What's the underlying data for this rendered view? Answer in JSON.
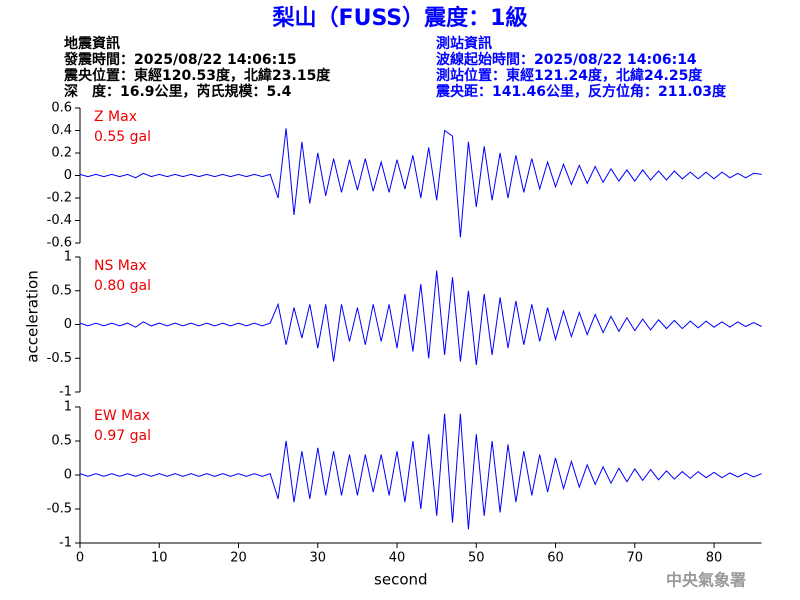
{
  "header": {
    "title": "梨山（FUSS）震度：1級",
    "left": [
      "地震資訊",
      "發震時間：2025/08/22 14:06:15",
      "震央位置：東經120.53度，北緯23.15度",
      "深　度：16.9公里，芮氏規模：5.4"
    ],
    "right": [
      "測站資訊",
      "波線起始時間：2025/08/22 14:06:14",
      "測站位置：東經121.24度，北緯24.25度",
      "震央距：141.46公里，反方位角：211.03度"
    ]
  },
  "footer": "中央氣象署",
  "chart_data": [
    {
      "type": "line",
      "annotations": [
        "Z Max",
        "0.55 gal"
      ],
      "color": "#0000ff",
      "x": [
        0,
        1,
        2,
        3,
        4,
        5,
        6,
        7,
        8,
        9,
        10,
        11,
        12,
        13,
        14,
        15,
        16,
        17,
        18,
        19,
        20,
        21,
        22,
        23,
        24,
        25,
        26,
        27,
        28,
        29,
        30,
        31,
        32,
        33,
        34,
        35,
        36,
        37,
        38,
        39,
        40,
        41,
        42,
        43,
        44,
        45,
        46,
        47,
        48,
        49,
        50,
        51,
        52,
        53,
        54,
        55,
        56,
        57,
        58,
        59,
        60,
        61,
        62,
        63,
        64,
        65,
        66,
        67,
        68,
        69,
        70,
        71,
        72,
        73,
        74,
        75,
        76,
        77,
        78,
        79,
        80,
        81,
        82,
        83,
        84,
        85,
        86
      ],
      "values": [
        0.01,
        -0.01,
        0.01,
        -0.01,
        0.01,
        -0.01,
        0.01,
        -0.02,
        0.02,
        -0.01,
        0.01,
        -0.01,
        0.01,
        -0.01,
        0.01,
        -0.01,
        0.01,
        -0.01,
        0.01,
        -0.01,
        0.01,
        -0.01,
        0.01,
        -0.01,
        0.01,
        -0.2,
        0.42,
        -0.35,
        0.3,
        -0.25,
        0.2,
        -0.18,
        0.15,
        -0.15,
        0.14,
        -0.13,
        0.15,
        -0.14,
        0.12,
        -0.15,
        0.14,
        -0.12,
        0.18,
        -0.2,
        0.25,
        -0.22,
        0.4,
        0.35,
        -0.55,
        0.3,
        -0.28,
        0.26,
        -0.22,
        0.2,
        -0.2,
        0.18,
        -0.15,
        0.15,
        -0.12,
        0.12,
        -0.1,
        0.1,
        -0.08,
        0.09,
        -0.07,
        0.08,
        -0.06,
        0.06,
        -0.05,
        0.05,
        -0.05,
        0.05,
        -0.04,
        0.04,
        -0.04,
        0.04,
        -0.03,
        0.03,
        -0.03,
        0.03,
        -0.03,
        0.03,
        -0.02,
        0.02,
        -0.02,
        0.02,
        0.01
      ],
      "xlim": [
        0,
        86
      ],
      "ylim": [
        -0.6,
        0.6
      ],
      "yticks": [
        0.6,
        0.4,
        0.2,
        0,
        -0.2,
        -0.4,
        -0.6
      ]
    },
    {
      "type": "line",
      "annotations": [
        "NS Max",
        "0.80 gal"
      ],
      "color": "#0000ff",
      "ylabel": "acceleration",
      "x": [
        0,
        1,
        2,
        3,
        4,
        5,
        6,
        7,
        8,
        9,
        10,
        11,
        12,
        13,
        14,
        15,
        16,
        17,
        18,
        19,
        20,
        21,
        22,
        23,
        24,
        25,
        26,
        27,
        28,
        29,
        30,
        31,
        32,
        33,
        34,
        35,
        36,
        37,
        38,
        39,
        40,
        41,
        42,
        43,
        44,
        45,
        46,
        47,
        48,
        49,
        50,
        51,
        52,
        53,
        54,
        55,
        56,
        57,
        58,
        59,
        60,
        61,
        62,
        63,
        64,
        65,
        66,
        67,
        68,
        69,
        70,
        71,
        72,
        73,
        74,
        75,
        76,
        77,
        78,
        79,
        80,
        81,
        82,
        83,
        84,
        85,
        86
      ],
      "values": [
        0.02,
        -0.02,
        0.02,
        -0.02,
        0.02,
        -0.02,
        0.02,
        -0.04,
        0.04,
        -0.02,
        0.02,
        -0.02,
        0.02,
        -0.02,
        0.02,
        -0.02,
        0.02,
        -0.02,
        0.02,
        -0.02,
        0.02,
        -0.02,
        0.02,
        -0.02,
        0.02,
        0.3,
        -0.3,
        0.25,
        -0.2,
        0.3,
        -0.35,
        0.3,
        -0.55,
        0.3,
        -0.25,
        0.25,
        -0.3,
        0.3,
        -0.25,
        0.3,
        -0.35,
        0.45,
        -0.4,
        0.6,
        -0.5,
        0.8,
        -0.45,
        0.7,
        -0.55,
        0.5,
        -0.6,
        0.45,
        -0.45,
        0.4,
        -0.35,
        0.35,
        -0.3,
        0.3,
        -0.25,
        0.25,
        -0.22,
        0.2,
        -0.18,
        0.18,
        -0.15,
        0.15,
        -0.12,
        0.12,
        -0.1,
        0.1,
        -0.09,
        0.08,
        -0.08,
        0.07,
        -0.06,
        0.06,
        -0.06,
        0.05,
        -0.05,
        0.05,
        -0.04,
        0.04,
        -0.04,
        0.04,
        -0.03,
        0.03,
        -0.03
      ],
      "xlim": [
        0,
        86
      ],
      "ylim": [
        -1,
        1
      ],
      "yticks": [
        1,
        0.5,
        0,
        -0.5,
        -1
      ]
    },
    {
      "type": "line",
      "annotations": [
        "EW Max",
        "0.97 gal"
      ],
      "color": "#0000ff",
      "xlabel": "second",
      "x": [
        0,
        1,
        2,
        3,
        4,
        5,
        6,
        7,
        8,
        9,
        10,
        11,
        12,
        13,
        14,
        15,
        16,
        17,
        18,
        19,
        20,
        21,
        22,
        23,
        24,
        25,
        26,
        27,
        28,
        29,
        30,
        31,
        32,
        33,
        34,
        35,
        36,
        37,
        38,
        39,
        40,
        41,
        42,
        43,
        44,
        45,
        46,
        47,
        48,
        49,
        50,
        51,
        52,
        53,
        54,
        55,
        56,
        57,
        58,
        59,
        60,
        61,
        62,
        63,
        64,
        65,
        66,
        67,
        68,
        69,
        70,
        71,
        72,
        73,
        74,
        75,
        76,
        77,
        78,
        79,
        80,
        81,
        82,
        83,
        84,
        85,
        86
      ],
      "values": [
        0.02,
        -0.02,
        0.02,
        -0.02,
        0.02,
        -0.02,
        0.02,
        -0.02,
        0.02,
        -0.02,
        0.02,
        -0.02,
        0.02,
        -0.02,
        0.02,
        -0.02,
        0.02,
        -0.02,
        0.02,
        -0.02,
        0.02,
        -0.02,
        0.02,
        -0.02,
        0.02,
        -0.35,
        0.5,
        -0.4,
        0.35,
        -0.35,
        0.4,
        -0.3,
        0.35,
        -0.3,
        0.3,
        -0.3,
        0.3,
        -0.25,
        0.3,
        -0.3,
        0.35,
        -0.4,
        0.5,
        -0.5,
        0.6,
        -0.6,
        0.9,
        -0.7,
        0.9,
        -0.8,
        0.6,
        -0.6,
        0.5,
        -0.55,
        0.45,
        -0.4,
        0.35,
        -0.3,
        0.3,
        -0.25,
        0.25,
        -0.2,
        0.2,
        -0.18,
        0.15,
        -0.14,
        0.12,
        -0.12,
        0.1,
        -0.1,
        0.09,
        -0.08,
        0.08,
        -0.07,
        0.06,
        -0.06,
        0.05,
        -0.05,
        0.05,
        -0.04,
        0.04,
        -0.04,
        0.03,
        -0.03,
        0.03,
        -0.03,
        0.02
      ],
      "xlim": [
        0,
        86
      ],
      "ylim": [
        -1,
        1
      ],
      "yticks": [
        1,
        0.5,
        0,
        -0.5,
        -1
      ],
      "xticks": [
        0,
        10,
        20,
        30,
        40,
        50,
        60,
        70,
        80
      ]
    }
  ]
}
